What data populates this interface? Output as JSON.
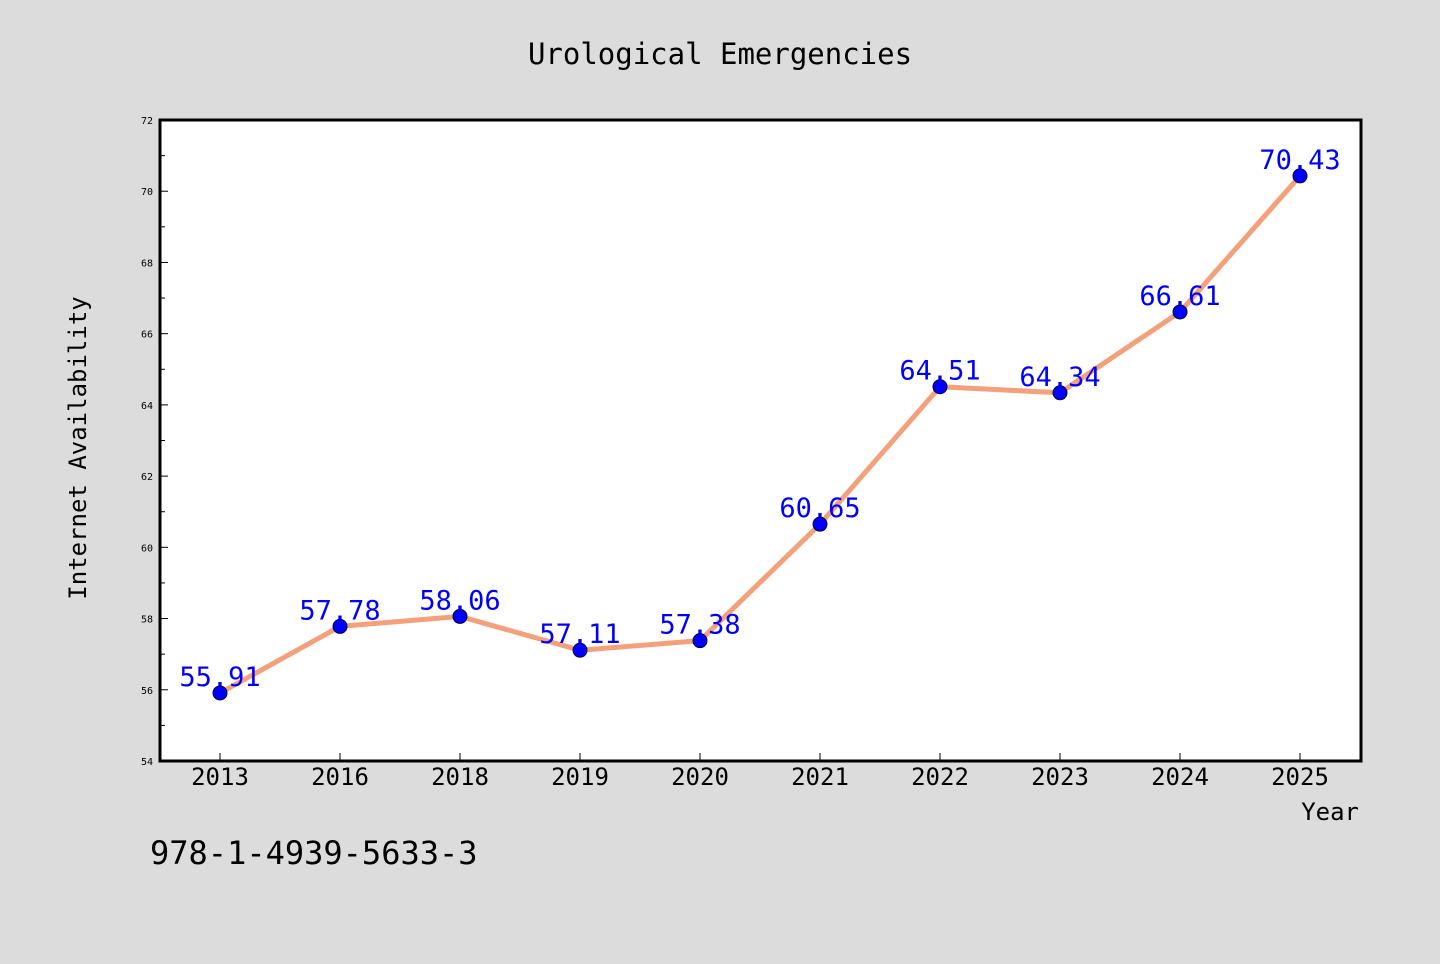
{
  "footer_text": "978-1-4939-5633-3",
  "chart_data": {
    "type": "line",
    "title": "Urological Emergencies",
    "xlabel": "Year",
    "ylabel": "Internet Availability",
    "categories": [
      "2013",
      "2016",
      "2018",
      "2019",
      "2020",
      "2021",
      "2022",
      "2023",
      "2024",
      "2025"
    ],
    "series": [
      {
        "values": [
          55.91,
          57.78,
          58.06,
          57.11,
          57.38,
          60.65,
          64.51,
          64.34,
          66.61,
          70.43
        ],
        "labels": [
          "55.91",
          "57.78",
          "58.06",
          "57.11",
          "57.38",
          "60.65",
          "64.51",
          "64.34",
          "66.61",
          "70.43"
        ],
        "line_color": "#f4a07a",
        "marker_color": "#0000ff",
        "label_color": "#0000ff"
      }
    ],
    "ylim": [
      54,
      72
    ],
    "y_ticks": [
      54,
      56,
      58,
      60,
      62,
      64,
      66,
      68,
      70,
      72
    ],
    "grid": false,
    "legend": "none"
  }
}
